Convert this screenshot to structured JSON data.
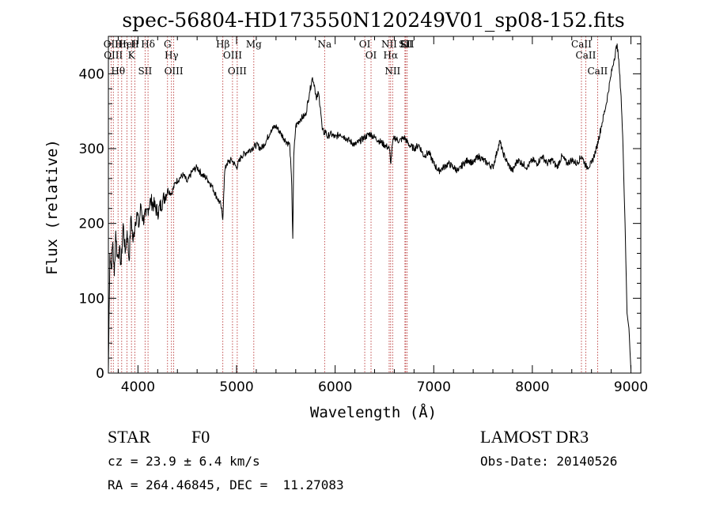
{
  "chart_data": {
    "type": "line",
    "title": "spec-56804-HD173550N120249V01_sp08-152.fits",
    "xlabel": "Wavelength (Å)",
    "ylabel": "Flux (relative)",
    "xlim": [
      3700,
      9100
    ],
    "ylim": [
      0,
      450
    ],
    "x_ticks": [
      4000,
      5000,
      6000,
      7000,
      8000,
      9000
    ],
    "y_ticks": [
      0,
      100,
      200,
      300,
      400
    ],
    "grid": false,
    "legend": "none",
    "series": [
      {
        "x": [
          3700,
          3715,
          3730,
          3745,
          3760,
          3775,
          3790,
          3810,
          3830,
          3850,
          3870,
          3890,
          3910,
          3930,
          3950,
          3970,
          3990,
          4010,
          4030,
          4050,
          4080,
          4100,
          4130,
          4160,
          4200,
          4250,
          4300,
          4340,
          4380,
          4420,
          4460,
          4500,
          4550,
          4600,
          4650,
          4700,
          4750,
          4800,
          4840,
          4860,
          4870,
          4880,
          4900,
          4950,
          5000,
          5050,
          5100,
          5150,
          5200,
          5250,
          5300,
          5350,
          5400,
          5450,
          5500,
          5540,
          5560,
          5570,
          5580,
          5600,
          5650,
          5700,
          5740,
          5770,
          5790,
          5810,
          5830,
          5850,
          5870,
          5890,
          5900,
          5920,
          5950,
          6000,
          6050,
          6100,
          6150,
          6200,
          6250,
          6300,
          6350,
          6400,
          6450,
          6500,
          6550,
          6565,
          6580,
          6600,
          6650,
          6700,
          6750,
          6800,
          6850,
          6900,
          6950,
          7000,
          7050,
          7100,
          7150,
          7200,
          7250,
          7300,
          7350,
          7400,
          7450,
          7500,
          7550,
          7600,
          7650,
          7670,
          7700,
          7750,
          7800,
          7850,
          7900,
          7950,
          8000,
          8050,
          8100,
          8150,
          8200,
          8250,
          8300,
          8350,
          8400,
          8450,
          8500,
          8550,
          8600,
          8650,
          8700,
          8750,
          8800,
          8830,
          8860,
          8880,
          8900,
          8920,
          8940,
          8960,
          8980,
          8990,
          9000
        ],
        "y": [
          5,
          160,
          140,
          175,
          130,
          190,
          155,
          165,
          145,
          200,
          160,
          190,
          150,
          210,
          175,
          200,
          215,
          195,
          225,
          205,
          210,
          220,
          230,
          225,
          215,
          230,
          245,
          240,
          255,
          260,
          265,
          255,
          270,
          275,
          265,
          260,
          250,
          235,
          225,
          205,
          240,
          270,
          280,
          285,
          275,
          290,
          295,
          300,
          305,
          300,
          310,
          325,
          330,
          320,
          310,
          305,
          250,
          180,
          290,
          330,
          340,
          345,
          375,
          395,
          385,
          365,
          375,
          355,
          325,
          320,
          325,
          315,
          320,
          315,
          320,
          315,
          310,
          305,
          310,
          315,
          320,
          315,
          310,
          305,
          300,
          280,
          305,
          315,
          310,
          315,
          305,
          300,
          305,
          290,
          295,
          280,
          270,
          275,
          280,
          275,
          270,
          280,
          285,
          280,
          290,
          285,
          280,
          275,
          300,
          310,
          295,
          280,
          270,
          285,
          280,
          275,
          285,
          280,
          290,
          280,
          285,
          275,
          290,
          280,
          285,
          280,
          290,
          275,
          280,
          300,
          330,
          360,
          400,
          420,
          440,
          410,
          370,
          300,
          200,
          80,
          60,
          30,
          5
        ]
      }
    ],
    "line_markers": [
      {
        "wavelength": 3727,
        "label": "OII"
      },
      {
        "wavelength": 3750,
        "label": "OIII"
      },
      {
        "wavelength": 3798,
        "label": "Hθ"
      },
      {
        "wavelength": 3835,
        "label": "Hη"
      },
      {
        "wavelength": 3889,
        "label": "HeI"
      },
      {
        "wavelength": 3934,
        "label": "K"
      },
      {
        "wavelength": 3969,
        "label": "H"
      },
      {
        "wavelength": 4072,
        "label": "SII"
      },
      {
        "wavelength": 4102,
        "label": "Hδ"
      },
      {
        "wavelength": 4300,
        "label": "G"
      },
      {
        "wavelength": 4340,
        "label": "Hγ"
      },
      {
        "wavelength": 4363,
        "label": "OIII"
      },
      {
        "wavelength": 4861,
        "label": "Hβ"
      },
      {
        "wavelength": 4959,
        "label": "OIII"
      },
      {
        "wavelength": 5007,
        "label": "OIII"
      },
      {
        "wavelength": 5175,
        "label": "Mg"
      },
      {
        "wavelength": 5893,
        "label": "Na"
      },
      {
        "wavelength": 6300,
        "label": "OI"
      },
      {
        "wavelength": 6364,
        "label": "OI"
      },
      {
        "wavelength": 6548,
        "label": "NII"
      },
      {
        "wavelength": 6563,
        "label": "Hα"
      },
      {
        "wavelength": 6583,
        "label": "NII"
      },
      {
        "wavelength": 6708,
        "label": "Li"
      },
      {
        "wavelength": 6716,
        "label": "SII"
      },
      {
        "wavelength": 6731,
        "label": "SII"
      },
      {
        "wavelength": 8498,
        "label": "CaII"
      },
      {
        "wavelength": 8542,
        "label": "CaII"
      },
      {
        "wavelength": 8662,
        "label": "CaII"
      }
    ],
    "colors": {
      "spectrum": "#000000",
      "markers": "#b22222"
    }
  },
  "info": {
    "object_class": "STAR",
    "subclass": "F0",
    "survey": "LAMOST DR3",
    "cz": "cz = 23.9 ± 6.4 km/s",
    "obs_date": "Obs-Date: 20140526",
    "coords": "RA = 264.46845, DEC =  11.27083"
  }
}
